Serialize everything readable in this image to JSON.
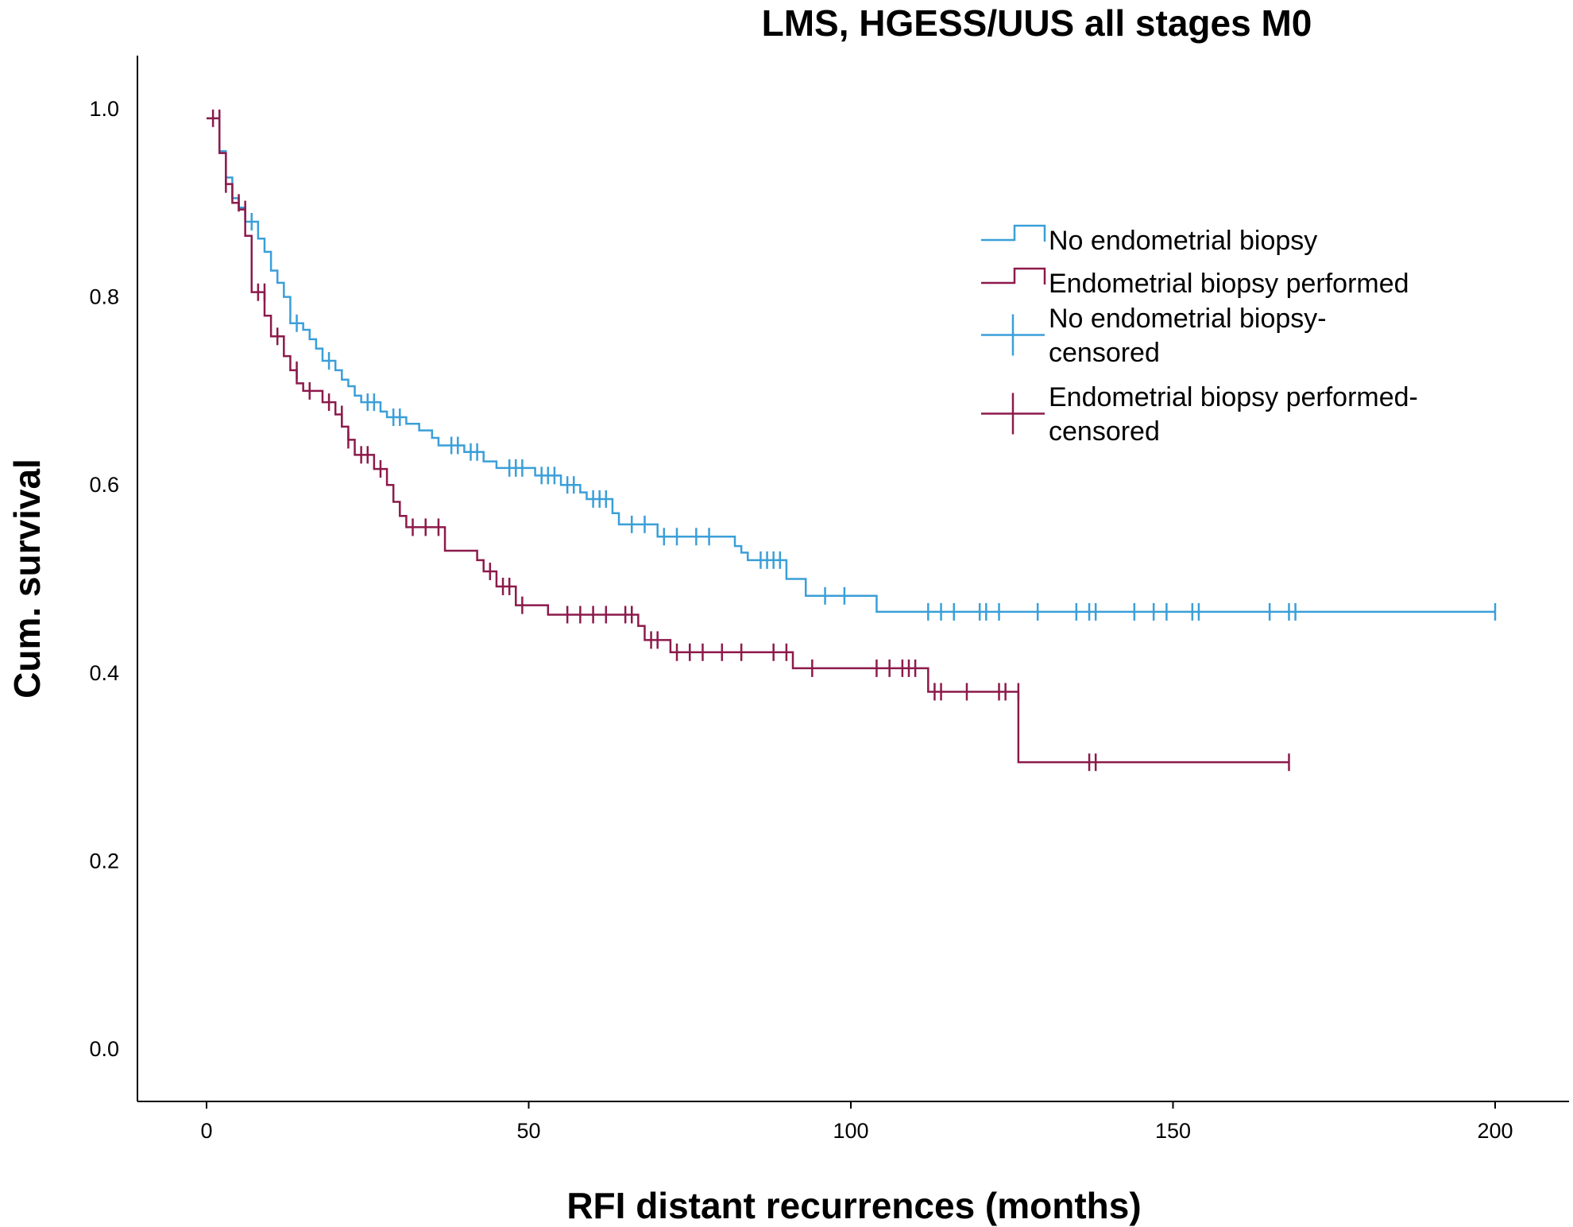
{
  "chart_data": {
    "type": "line",
    "subtype": "kaplan-meier",
    "title": "LMS, HGESS/UUS all stages M0",
    "xlabel": "RFI distant recurrences (months)",
    "ylabel": "Cum. survival",
    "xlim": [
      -10,
      210
    ],
    "ylim": [
      -0.05,
      1.05
    ],
    "xticks": [
      0,
      50,
      100,
      150,
      200
    ],
    "yticks": [
      0.0,
      0.2,
      0.4,
      0.6,
      0.8,
      1.0
    ],
    "xtick_labels": [
      "0",
      "50",
      "100",
      "150",
      "200"
    ],
    "ytick_labels": [
      "0.0",
      "0.2",
      "0.4",
      "0.6",
      "0.8",
      "1.0"
    ],
    "legend_position": "top-right",
    "legend": [
      {
        "label": "No endometrial biopsy",
        "kind": "line",
        "series": 0
      },
      {
        "label": "Endometrial biopsy performed",
        "kind": "line",
        "series": 1
      },
      {
        "label_lines": [
          "No endometrial biopsy-",
          "censored"
        ],
        "kind": "censor",
        "series": 0
      },
      {
        "label_lines": [
          "Endometrial biopsy performed-",
          "censored"
        ],
        "kind": "censor",
        "series": 1
      }
    ],
    "series": [
      {
        "name": "No endometrial biopsy",
        "color": "#3a9fd8",
        "steps": [
          [
            0,
            0.99
          ],
          [
            2,
            0.955
          ],
          [
            3,
            0.927
          ],
          [
            4,
            0.905
          ],
          [
            5,
            0.895
          ],
          [
            6,
            0.88
          ],
          [
            8,
            0.862
          ],
          [
            9,
            0.848
          ],
          [
            10,
            0.828
          ],
          [
            11,
            0.815
          ],
          [
            12,
            0.8
          ],
          [
            13,
            0.772
          ],
          [
            15,
            0.765
          ],
          [
            16,
            0.755
          ],
          [
            17,
            0.745
          ],
          [
            18,
            0.732
          ],
          [
            20,
            0.722
          ],
          [
            21,
            0.712
          ],
          [
            22,
            0.705
          ],
          [
            23,
            0.695
          ],
          [
            24,
            0.688
          ],
          [
            27,
            0.678
          ],
          [
            28,
            0.672
          ],
          [
            31,
            0.665
          ],
          [
            33,
            0.658
          ],
          [
            35,
            0.65
          ],
          [
            36,
            0.642
          ],
          [
            40,
            0.635
          ],
          [
            43,
            0.625
          ],
          [
            45,
            0.618
          ],
          [
            51,
            0.61
          ],
          [
            55,
            0.6
          ],
          [
            58,
            0.592
          ],
          [
            59,
            0.585
          ],
          [
            63,
            0.57
          ],
          [
            64,
            0.558
          ],
          [
            70,
            0.545
          ],
          [
            82,
            0.535
          ],
          [
            83,
            0.528
          ],
          [
            84,
            0.52
          ],
          [
            90,
            0.5
          ],
          [
            93,
            0.482
          ],
          [
            104,
            0.465
          ],
          [
            200,
            0.465
          ]
        ],
        "censored": [
          [
            112,
            0.465
          ],
          [
            114,
            0.465
          ],
          [
            116,
            0.465
          ],
          [
            120,
            0.465
          ],
          [
            121,
            0.465
          ],
          [
            123,
            0.465
          ],
          [
            129,
            0.465
          ],
          [
            135,
            0.465
          ],
          [
            137,
            0.465
          ],
          [
            138,
            0.465
          ],
          [
            144,
            0.465
          ],
          [
            147,
            0.465
          ],
          [
            149,
            0.465
          ],
          [
            153,
            0.465
          ],
          [
            154,
            0.465
          ],
          [
            165,
            0.465
          ],
          [
            168,
            0.465
          ],
          [
            169,
            0.465
          ],
          [
            200,
            0.465
          ],
          [
            96,
            0.482
          ],
          [
            99,
            0.482
          ],
          [
            76,
            0.545
          ],
          [
            78,
            0.545
          ],
          [
            68,
            0.558
          ],
          [
            66,
            0.558
          ],
          [
            60,
            0.585
          ],
          [
            61,
            0.585
          ],
          [
            62,
            0.585
          ],
          [
            56,
            0.6
          ],
          [
            57,
            0.6
          ],
          [
            52,
            0.61
          ],
          [
            53,
            0.61
          ],
          [
            54,
            0.61
          ],
          [
            47,
            0.618
          ],
          [
            48,
            0.618
          ],
          [
            49,
            0.618
          ],
          [
            41,
            0.635
          ],
          [
            42,
            0.635
          ],
          [
            38,
            0.642
          ],
          [
            39,
            0.642
          ],
          [
            29,
            0.672
          ],
          [
            30,
            0.672
          ],
          [
            25,
            0.688
          ],
          [
            26,
            0.688
          ],
          [
            19,
            0.732
          ],
          [
            14,
            0.772
          ],
          [
            7,
            0.88
          ],
          [
            86,
            0.52
          ],
          [
            87,
            0.52
          ],
          [
            88,
            0.52
          ],
          [
            89,
            0.52
          ],
          [
            71,
            0.545
          ],
          [
            73,
            0.545
          ]
        ]
      },
      {
        "name": "Endometrial biopsy performed",
        "color": "#8c1a4b",
        "steps": [
          [
            0,
            0.99
          ],
          [
            2,
            0.953
          ],
          [
            3,
            0.92
          ],
          [
            4,
            0.9
          ],
          [
            5,
            0.893
          ],
          [
            6,
            0.865
          ],
          [
            7,
            0.805
          ],
          [
            9,
            0.78
          ],
          [
            10,
            0.758
          ],
          [
            12,
            0.737
          ],
          [
            13,
            0.722
          ],
          [
            14,
            0.708
          ],
          [
            15,
            0.7
          ],
          [
            18,
            0.688
          ],
          [
            20,
            0.675
          ],
          [
            21,
            0.662
          ],
          [
            22,
            0.648
          ],
          [
            23,
            0.632
          ],
          [
            26,
            0.617
          ],
          [
            28,
            0.6
          ],
          [
            29,
            0.582
          ],
          [
            30,
            0.567
          ],
          [
            31,
            0.555
          ],
          [
            37,
            0.53
          ],
          [
            42,
            0.52
          ],
          [
            43,
            0.508
          ],
          [
            45,
            0.492
          ],
          [
            48,
            0.472
          ],
          [
            53,
            0.462
          ],
          [
            67,
            0.45
          ],
          [
            68,
            0.435
          ],
          [
            72,
            0.422
          ],
          [
            91,
            0.405
          ],
          [
            112,
            0.38
          ],
          [
            126,
            0.305
          ],
          [
            168,
            0.305
          ]
        ],
        "censored": [
          [
            1,
            0.99
          ],
          [
            2,
            0.99
          ],
          [
            3,
            0.92
          ],
          [
            5,
            0.9
          ],
          [
            6,
            0.893
          ],
          [
            8,
            0.805
          ],
          [
            9,
            0.805
          ],
          [
            11,
            0.758
          ],
          [
            14,
            0.722
          ],
          [
            16,
            0.7
          ],
          [
            19,
            0.688
          ],
          [
            21,
            0.675
          ],
          [
            22,
            0.648
          ],
          [
            24,
            0.632
          ],
          [
            25,
            0.632
          ],
          [
            27,
            0.617
          ],
          [
            32,
            0.555
          ],
          [
            34,
            0.555
          ],
          [
            36,
            0.555
          ],
          [
            44,
            0.508
          ],
          [
            46,
            0.492
          ],
          [
            47,
            0.492
          ],
          [
            49,
            0.472
          ],
          [
            56,
            0.462
          ],
          [
            58,
            0.462
          ],
          [
            60,
            0.462
          ],
          [
            62,
            0.462
          ],
          [
            65,
            0.462
          ],
          [
            66,
            0.462
          ],
          [
            69,
            0.435
          ],
          [
            70,
            0.435
          ],
          [
            73,
            0.422
          ],
          [
            75,
            0.422
          ],
          [
            77,
            0.422
          ],
          [
            80,
            0.422
          ],
          [
            83,
            0.422
          ],
          [
            88,
            0.422
          ],
          [
            90,
            0.422
          ],
          [
            94,
            0.405
          ],
          [
            104,
            0.405
          ],
          [
            106,
            0.405
          ],
          [
            108,
            0.405
          ],
          [
            109,
            0.405
          ],
          [
            110,
            0.405
          ],
          [
            113,
            0.38
          ],
          [
            114,
            0.38
          ],
          [
            118,
            0.38
          ],
          [
            123,
            0.38
          ],
          [
            124,
            0.38
          ],
          [
            126,
            0.38
          ],
          [
            137,
            0.305
          ],
          [
            138,
            0.305
          ],
          [
            168,
            0.305
          ]
        ]
      }
    ]
  }
}
